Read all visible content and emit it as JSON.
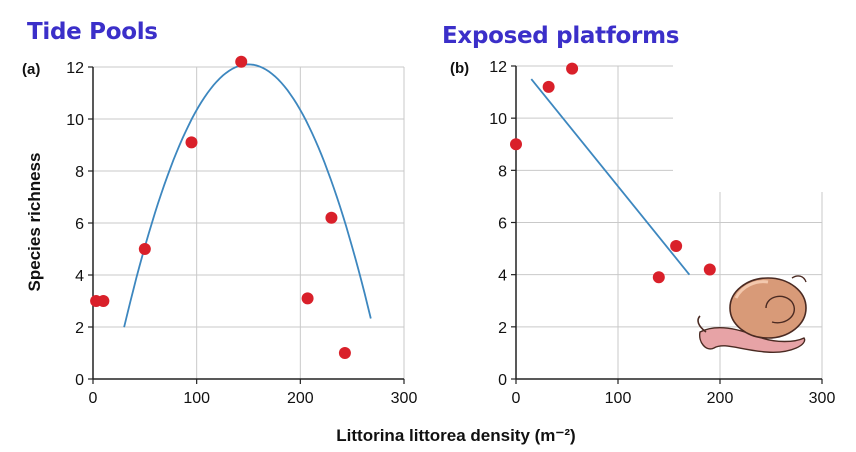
{
  "chart_data": [
    {
      "type": "scatter",
      "title": "Tide Pools",
      "panel_label": "(a)",
      "xlabel": "Littorina littorea density (m⁻²)",
      "ylabel": "Species richness",
      "xlim": [
        0,
        300
      ],
      "ylim": [
        0,
        12
      ],
      "xticks": [
        0,
        100,
        200,
        300
      ],
      "yticks": [
        0,
        2,
        4,
        6,
        8,
        10,
        12
      ],
      "grid": true,
      "points": [
        {
          "x": 3,
          "y": 3.0
        },
        {
          "x": 10,
          "y": 3.0
        },
        {
          "x": 50,
          "y": 5.0
        },
        {
          "x": 95,
          "y": 9.1
        },
        {
          "x": 143,
          "y": 12.2
        },
        {
          "x": 207,
          "y": 3.1
        },
        {
          "x": 230,
          "y": 6.2
        },
        {
          "x": 243,
          "y": 1.0
        }
      ],
      "fit": {
        "type": "quadratic",
        "x_range": [
          30,
          268
        ],
        "vertex_x": 150,
        "vertex_y": 12.1,
        "a": -0.000702
      },
      "point_color": "#d9202a",
      "fit_color": "#3d87bf"
    },
    {
      "type": "scatter",
      "title": "Exposed platforms",
      "panel_label": "(b)",
      "xlim": [
        0,
        300
      ],
      "ylim": [
        0,
        12
      ],
      "xticks": [
        0,
        100,
        200,
        300
      ],
      "yticks": [
        0,
        2,
        4,
        6,
        8,
        10,
        12
      ],
      "grid": true,
      "points": [
        {
          "x": 0,
          "y": 9.0
        },
        {
          "x": 32,
          "y": 11.2
        },
        {
          "x": 55,
          "y": 11.9
        },
        {
          "x": 140,
          "y": 3.9
        },
        {
          "x": 157,
          "y": 5.1
        },
        {
          "x": 190,
          "y": 4.2
        }
      ],
      "fit": {
        "type": "linear",
        "points": [
          [
            15,
            11.5
          ],
          [
            170,
            4.0
          ]
        ]
      },
      "point_color": "#d9202a",
      "fit_color": "#3d87bf"
    }
  ],
  "illustration": {
    "icon": "snail-icon",
    "shell_color": "#d89a78",
    "body_color": "#e7a3a6"
  },
  "title_color": "#3b2fc9"
}
